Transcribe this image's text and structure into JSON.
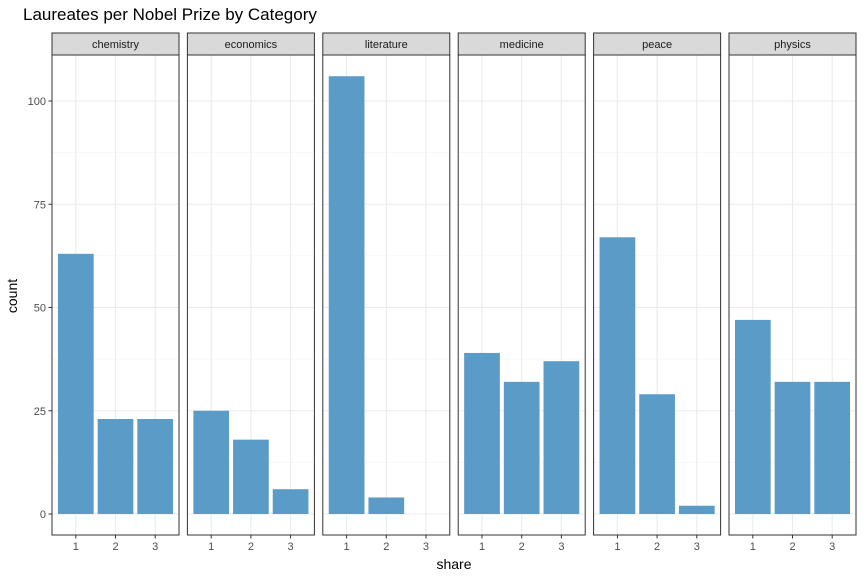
{
  "chart_data": {
    "type": "bar",
    "title": "Laureates per Nobel Prize by Category",
    "xlabel": "share",
    "ylabel": "count",
    "x_categories": [
      "1",
      "2",
      "3"
    ],
    "ylim": [
      0,
      110
    ],
    "y_ticks": [
      0,
      25,
      50,
      75,
      100
    ],
    "grid": true,
    "bar_color": "#5b9bc8",
    "panels": [
      {
        "name": "chemistry",
        "values": [
          63,
          23,
          23
        ]
      },
      {
        "name": "economics",
        "values": [
          25,
          18,
          6
        ]
      },
      {
        "name": "literature",
        "values": [
          106,
          4,
          0
        ]
      },
      {
        "name": "medicine",
        "values": [
          39,
          32,
          37
        ]
      },
      {
        "name": "peace",
        "values": [
          67,
          29,
          2
        ]
      },
      {
        "name": "physics",
        "values": [
          47,
          32,
          32
        ]
      }
    ]
  }
}
